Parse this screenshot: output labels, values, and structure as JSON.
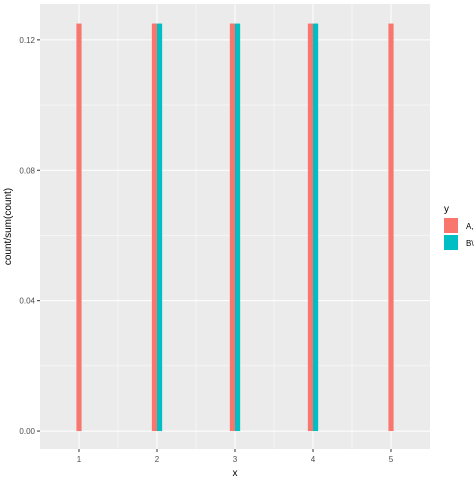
{
  "chart_data": {
    "type": "bar",
    "xlabel": "x",
    "ylabel": "count/sum(count)",
    "title": "",
    "x_ticks": [
      "1",
      "2",
      "3",
      "4",
      "5"
    ],
    "y_ticks": [
      "0.00",
      "0.04",
      "0.08",
      "0.12"
    ],
    "xlim": [
      0.5,
      5.5
    ],
    "ylim": [
      -0.0055,
      0.131
    ],
    "grid": true,
    "legend_position": "right",
    "legend": {
      "title": "y",
      "entries": [
        {
          "label": "A,",
          "color": "#F8766D"
        },
        {
          "label": "B\\",
          "color": "#00BFC4"
        }
      ]
    },
    "series": [
      {
        "name": "A,",
        "color": "#F8766D",
        "x": [
          1,
          2,
          3,
          4,
          5
        ],
        "values": [
          0.125,
          0.125,
          0.125,
          0.125,
          0.125
        ]
      },
      {
        "name": "B\\",
        "color": "#00BFC4",
        "x": [
          2,
          3,
          4
        ],
        "values": [
          0.125,
          0.125,
          0.125
        ]
      }
    ],
    "panel_background": "#EBEBEB",
    "grid_color": "#FFFFFF"
  }
}
